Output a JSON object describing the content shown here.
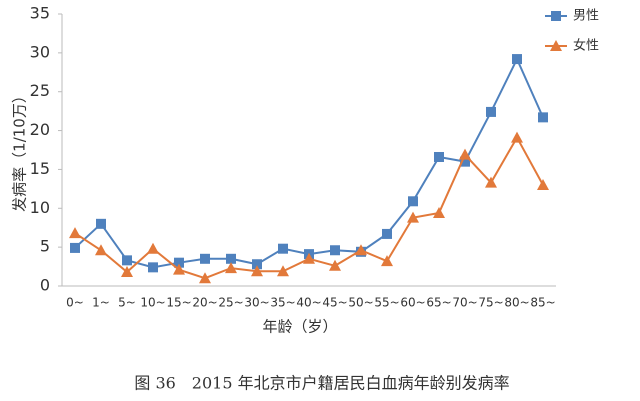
{
  "chart_data": {
    "type": "line",
    "title": "图 36　2015 年北京市户籍居民白血病年龄别发病率",
    "x_label": "年龄（岁）",
    "y_label": "发病率（1/10万）",
    "categories": [
      "0~",
      "1~",
      "5~",
      "10~",
      "15~",
      "20~",
      "25~",
      "30~",
      "35~",
      "40~",
      "45~",
      "50~",
      "55~",
      "60~",
      "65~",
      "70~",
      "75~",
      "80~",
      "85~"
    ],
    "series": [
      {
        "name": "男性",
        "color": "#4f81bd",
        "marker": "square",
        "values": [
          4.9,
          8.0,
          3.3,
          2.4,
          3.0,
          3.5,
          3.5,
          2.8,
          4.8,
          4.1,
          4.6,
          4.4,
          6.7,
          10.9,
          16.6,
          16.0,
          22.4,
          29.2,
          21.7
        ]
      },
      {
        "name": "女性",
        "color": "#e2793a",
        "marker": "triangle",
        "values": [
          6.8,
          4.6,
          1.8,
          4.8,
          2.1,
          1.0,
          2.3,
          1.9,
          1.9,
          3.5,
          2.6,
          4.6,
          3.2,
          8.8,
          9.4,
          16.9,
          13.3,
          19.1,
          13.0
        ]
      }
    ],
    "ylim": [
      0,
      35
    ],
    "yticks": [
      0,
      5,
      10,
      15,
      20,
      25,
      30,
      35
    ],
    "grid": false,
    "legend": "top-right"
  }
}
